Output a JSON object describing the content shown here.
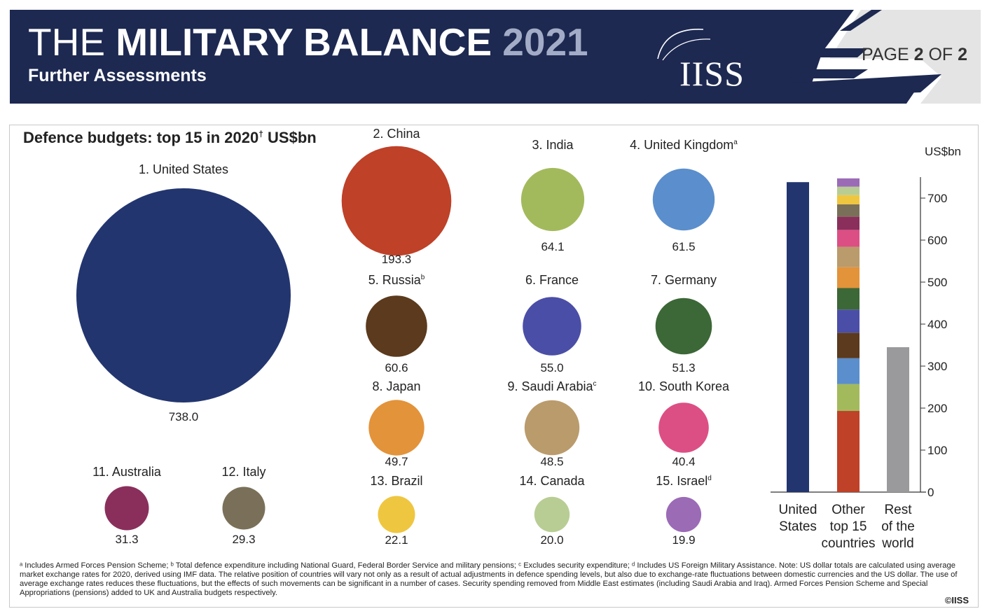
{
  "header": {
    "title_prefix": "THE",
    "title_main": "MILITARY BALANCE",
    "title_year": "2021",
    "subtitle": "Further Assessments",
    "logo": "IISS",
    "page_prefix": "PAGE",
    "page_current": "2",
    "page_of": "OF",
    "page_total": "2"
  },
  "colors": {
    "header_navy": "#1d2951",
    "us": "#22356f",
    "china": "#be4128",
    "india": "#a3ba5c",
    "uk": "#5b8ecc",
    "russia": "#5b3a1d",
    "france": "#4b4ea6",
    "germany": "#3c6737",
    "japan": "#e3933a",
    "saudi": "#ba9b6b",
    "korea": "#dc4f84",
    "australia": "#8a2f5b",
    "italy": "#7a7059",
    "brazil": "#efc63f",
    "canada": "#b8cd94",
    "israel": "#9b6bb6",
    "rest": "#9a9a9d"
  },
  "chart_data": [
    {
      "type": "bubble",
      "title": "Defence budgets: top 15 in 2020",
      "title_mark": "†",
      "unit": "US$bn",
      "items": [
        {
          "rank": "1.",
          "name": "United States",
          "sup": "",
          "value": 738.0,
          "label": "738.0",
          "color": "#22356f"
        },
        {
          "rank": "2.",
          "name": "China",
          "sup": "",
          "value": 193.3,
          "label": "193.3",
          "color": "#be4128"
        },
        {
          "rank": "3.",
          "name": "India",
          "sup": "",
          "value": 64.1,
          "label": "64.1",
          "color": "#a3ba5c"
        },
        {
          "rank": "4.",
          "name": "United Kingdom",
          "sup": "a",
          "value": 61.5,
          "label": "61.5",
          "color": "#5b8ecc"
        },
        {
          "rank": "5.",
          "name": "Russia",
          "sup": "b",
          "value": 60.6,
          "label": "60.6",
          "color": "#5b3a1d"
        },
        {
          "rank": "6.",
          "name": "France",
          "sup": "",
          "value": 55.0,
          "label": "55.0",
          "color": "#4b4ea6"
        },
        {
          "rank": "7.",
          "name": "Germany",
          "sup": "",
          "value": 51.3,
          "label": "51.3",
          "color": "#3c6737"
        },
        {
          "rank": "8.",
          "name": "Japan",
          "sup": "",
          "value": 49.7,
          "label": "49.7",
          "color": "#e3933a"
        },
        {
          "rank": "9.",
          "name": "Saudi Arabia",
          "sup": "c",
          "value": 48.5,
          "label": "48.5",
          "color": "#ba9b6b"
        },
        {
          "rank": "10.",
          "name": "South Korea",
          "sup": "",
          "value": 40.4,
          "label": "40.4",
          "color": "#dc4f84"
        },
        {
          "rank": "11.",
          "name": "Australia",
          "sup": "",
          "value": 31.3,
          "label": "31.3",
          "color": "#8a2f5b"
        },
        {
          "rank": "12.",
          "name": "Italy",
          "sup": "",
          "value": 29.3,
          "label": "29.3",
          "color": "#7a7059"
        },
        {
          "rank": "13.",
          "name": "Brazil",
          "sup": "",
          "value": 22.1,
          "label": "22.1",
          "color": "#efc63f"
        },
        {
          "rank": "14.",
          "name": "Canada",
          "sup": "",
          "value": 20.0,
          "label": "20.0",
          "color": "#b8cd94"
        },
        {
          "rank": "15.",
          "name": "Israel",
          "sup": "d",
          "value": 19.9,
          "label": "19.9",
          "color": "#9b6bb6"
        }
      ]
    },
    {
      "type": "bar",
      "stacked": true,
      "unit": "US$bn",
      "ylim": [
        0,
        750
      ],
      "yticks": [
        0,
        100,
        200,
        300,
        400,
        500,
        600,
        700
      ],
      "categories": [
        [
          "United",
          "States"
        ],
        [
          "Other",
          "top 15",
          "countries"
        ],
        [
          "Rest",
          "of the",
          "world"
        ]
      ],
      "bars": [
        {
          "segments": [
            {
              "name": "United States",
              "value": 738.0,
              "color": "#22356f"
            }
          ]
        },
        {
          "segments": [
            {
              "name": "China",
              "value": 193.3,
              "color": "#be4128"
            },
            {
              "name": "India",
              "value": 64.1,
              "color": "#a3ba5c"
            },
            {
              "name": "United Kingdom",
              "value": 61.5,
              "color": "#5b8ecc"
            },
            {
              "name": "Russia",
              "value": 60.6,
              "color": "#5b3a1d"
            },
            {
              "name": "France",
              "value": 55.0,
              "color": "#4b4ea6"
            },
            {
              "name": "Germany",
              "value": 51.3,
              "color": "#3c6737"
            },
            {
              "name": "Japan",
              "value": 49.7,
              "color": "#e3933a"
            },
            {
              "name": "Saudi Arabia",
              "value": 48.5,
              "color": "#ba9b6b"
            },
            {
              "name": "South Korea",
              "value": 40.4,
              "color": "#dc4f84"
            },
            {
              "name": "Australia",
              "value": 31.3,
              "color": "#8a2f5b"
            },
            {
              "name": "Italy",
              "value": 29.3,
              "color": "#7a7059"
            },
            {
              "name": "Brazil",
              "value": 22.1,
              "color": "#efc63f"
            },
            {
              "name": "Canada",
              "value": 20.0,
              "color": "#b8cd94"
            },
            {
              "name": "Israel",
              "value": 19.9,
              "color": "#9b6bb6"
            }
          ]
        },
        {
          "segments": [
            {
              "name": "Rest of the world",
              "value": 345,
              "color": "#9a9a9d"
            }
          ]
        }
      ]
    }
  ],
  "footnote": "ᵃ Includes Armed Forces Pension Scheme; ᵇ Total defence expenditure including National Guard, Federal Border Service and military pensions; ᶜ Excludes security expenditure; ᵈ Includes US Foreign Military Assistance. Note: US dollar totals are calculated using average market exchange rates for 2020, derived using IMF data. The relative position of countries will vary not only as a result of actual adjustments in defence spending levels, but also due to exchange-rate fluctuations between domestic currencies and the US dollar. The use of average exchange rates reduces these fluctuations, but the effects of such movements can be significant in a number of cases. Security spending removed from Middle East estimates (including Saudi Arabia and Iraq). Armed Forces Pension Scheme and Special Appropriations (pensions) added to UK and Australia budgets respectively.",
  "credit": "©IISS"
}
